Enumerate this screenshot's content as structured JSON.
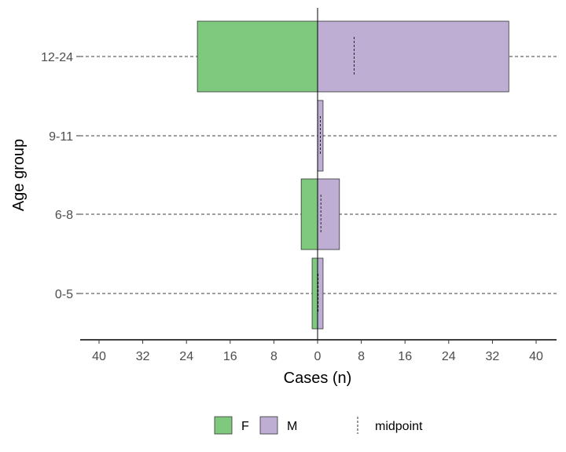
{
  "chart_data": {
    "type": "bar",
    "orientation": "horizontal-population-pyramid",
    "xlabel": "Cases (n)",
    "ylabel": "Age group",
    "categories": [
      "0-5",
      "6-8",
      "9-11",
      "12-24"
    ],
    "xlim": [
      -40,
      40
    ],
    "x_ticks": [
      -40,
      -32,
      -24,
      -16,
      -8,
      0,
      8,
      16,
      24,
      32,
      40
    ],
    "x_tick_labels": [
      "40",
      "32",
      "24",
      "16",
      "8",
      "0",
      "8",
      "16",
      "24",
      "32",
      "40"
    ],
    "series": [
      {
        "name": "F",
        "side": "left",
        "color": "#7fc97f",
        "values": [
          1,
          3,
          0,
          22
        ]
      },
      {
        "name": "M",
        "side": "right",
        "color": "#beaed4",
        "values": [
          1,
          4,
          1,
          35
        ]
      }
    ],
    "midpoints": [
      0.1,
      0.6,
      0.5,
      6.7
    ],
    "midpoint_label": "midpoint",
    "grid": "dashed horizontal lines at each age group",
    "legend": {
      "position": "bottom",
      "entries": [
        "F",
        "M",
        "midpoint"
      ]
    }
  }
}
